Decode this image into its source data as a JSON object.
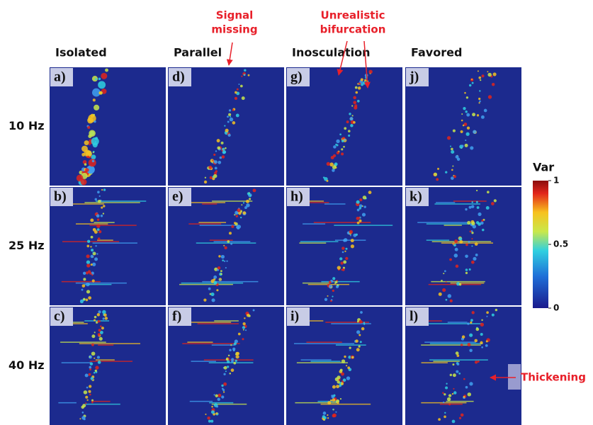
{
  "columns": [
    "Isolated",
    "Parallel",
    "Inosculation",
    "Favored"
  ],
  "rows": [
    "10 Hz",
    "25 Hz",
    "40 Hz"
  ],
  "panels": [
    [
      "a)",
      "d)",
      "g)",
      "j)"
    ],
    [
      "b)",
      "e)",
      "h)",
      "k)"
    ],
    [
      "c)",
      "f)",
      "i)",
      "l)"
    ]
  ],
  "annotations": {
    "signal_missing": [
      "Signal",
      "missing"
    ],
    "bifurcation": [
      "Unrealistic",
      "bifurcation"
    ],
    "thickening": "Thickening"
  },
  "colorbar": {
    "label": "Var",
    "ticks": [
      0,
      0.5,
      1
    ]
  }
}
